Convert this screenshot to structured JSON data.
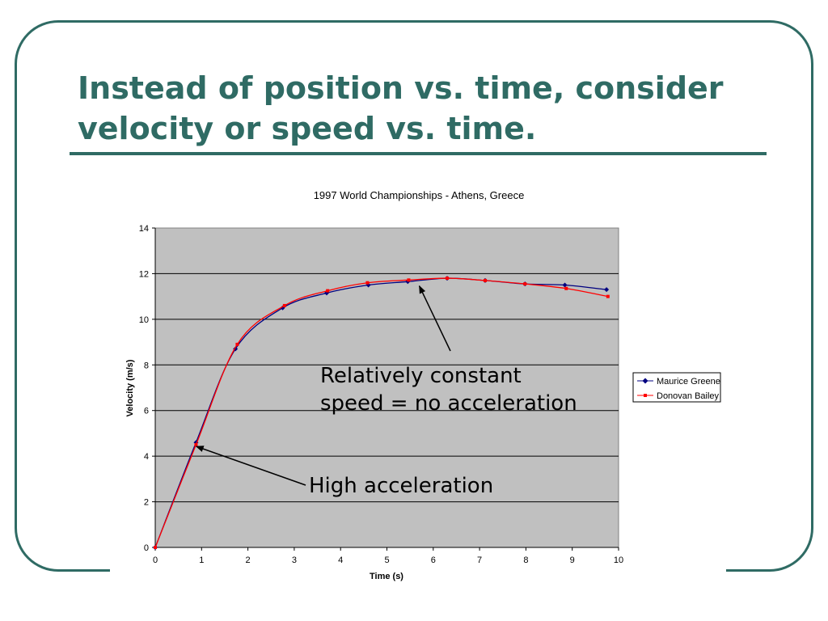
{
  "slide": {
    "title_line1": "Instead of position vs. time, consider",
    "title_line2": "velocity or speed vs. time."
  },
  "colors": {
    "frame": "#2f6b64",
    "plot_background": "#c0c0c0",
    "series_greene": "#000080",
    "series_bailey": "#ff0000"
  },
  "chart_data": {
    "type": "line",
    "title": "1997 World Championships - Athens, Greece",
    "xlabel": "Time (s)",
    "ylabel": "Velocity (m/s)",
    "xlim": [
      0,
      10
    ],
    "ylim": [
      0,
      14
    ],
    "x_ticks": [
      0,
      1,
      2,
      3,
      4,
      5,
      6,
      7,
      8,
      9,
      10
    ],
    "y_ticks": [
      0,
      2,
      4,
      6,
      8,
      10,
      12,
      14
    ],
    "grid": "horizontal",
    "legend_position": "right",
    "series": [
      {
        "name": "Maurice Greene",
        "color": "#000080",
        "marker": "diamond",
        "points": [
          [
            0,
            0
          ],
          [
            0.88,
            4.6
          ],
          [
            1.73,
            8.7
          ],
          [
            2.75,
            10.5
          ],
          [
            3.7,
            11.15
          ],
          [
            4.6,
            11.5
          ],
          [
            5.45,
            11.65
          ],
          [
            6.3,
            11.8
          ],
          [
            7.12,
            11.7
          ],
          [
            7.98,
            11.55
          ],
          [
            8.84,
            11.5
          ],
          [
            9.74,
            11.3
          ]
        ]
      },
      {
        "name": "Donovan Bailey",
        "color": "#ff0000",
        "marker": "square",
        "points": [
          [
            0,
            0
          ],
          [
            0.88,
            4.5
          ],
          [
            1.77,
            8.9
          ],
          [
            2.79,
            10.6
          ],
          [
            3.72,
            11.25
          ],
          [
            4.58,
            11.6
          ],
          [
            5.47,
            11.72
          ],
          [
            6.3,
            11.8
          ],
          [
            7.12,
            11.7
          ],
          [
            7.98,
            11.55
          ],
          [
            8.87,
            11.35
          ],
          [
            9.77,
            11.0
          ]
        ]
      }
    ],
    "annotations": [
      {
        "text_line1": "Relatively constant",
        "text_line2": "speed = no acceleration",
        "points_to": [
          5.7,
          11.6
        ]
      },
      {
        "text": "High acceleration",
        "points_to": [
          0.85,
          4.5
        ]
      }
    ]
  }
}
